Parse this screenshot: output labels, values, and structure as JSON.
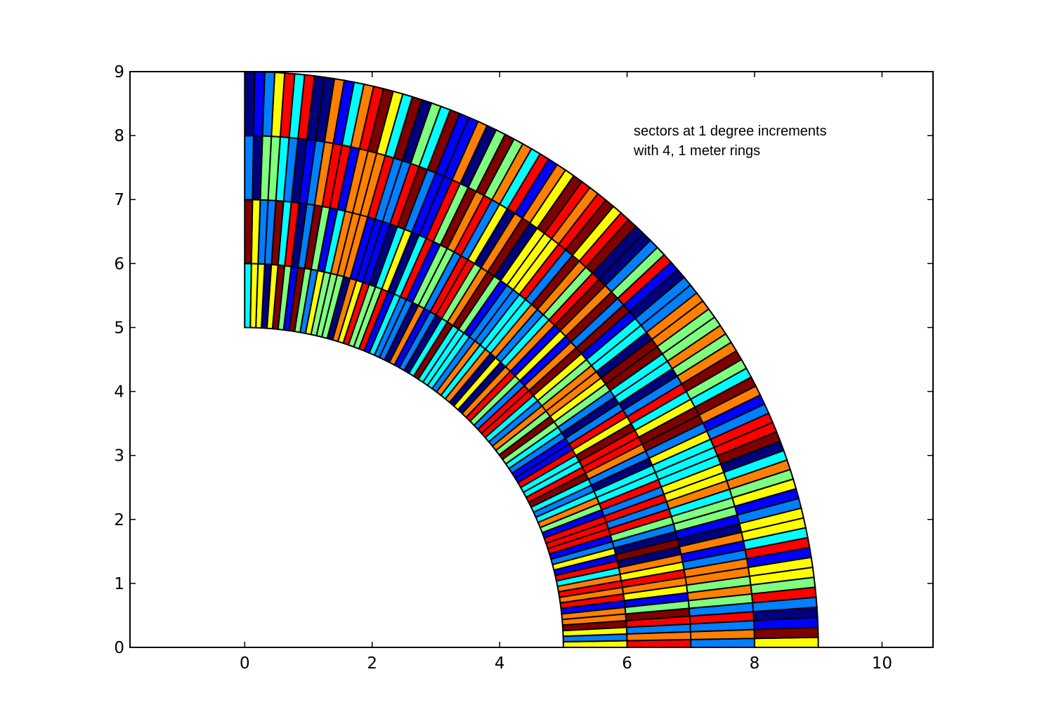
{
  "chart_data": {
    "type": "polar-wedge",
    "title": "",
    "xlabel": "",
    "ylabel": "",
    "xlim": [
      -1.8,
      10.8
    ],
    "ylim": [
      0,
      9
    ],
    "x_ticks": [
      0,
      2,
      4,
      6,
      8,
      10
    ],
    "y_ticks": [
      0,
      1,
      2,
      3,
      4,
      5,
      6,
      7,
      8,
      9
    ],
    "inner_radius": 5,
    "ring_width": 1,
    "ring_count": 4,
    "sector_degrees": 1,
    "angle_range_degrees": [
      0,
      90
    ],
    "colormap": "jet",
    "grid": false,
    "annotation": [
      "sectors at 1 degree increments",
      "with 4, 1 meter rings"
    ],
    "colors": {
      "axes": "#000000",
      "edge": "#000000",
      "jet": [
        "#00007f",
        "#0000ff",
        "#007fff",
        "#00ffff",
        "#7fff7f",
        "#ffff00",
        "#ff7f00",
        "#ff0000",
        "#7f0000"
      ]
    }
  }
}
